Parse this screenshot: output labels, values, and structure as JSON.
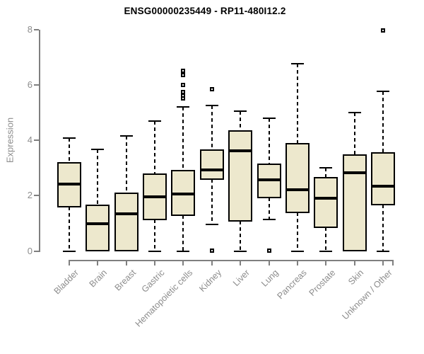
{
  "chart_data": {
    "type": "boxplot",
    "title": "ENSG00000235449 - RP11-480I12.2",
    "xlabel": "",
    "ylabel": "Expression",
    "ylim": [
      0,
      8
    ],
    "yticks": [
      0,
      2,
      4,
      6,
      8
    ],
    "grid": false,
    "legend": "none",
    "categories": [
      "Bladder",
      "Brain",
      "Breast",
      "Gastric",
      "Hematopoietic cells",
      "Kidney",
      "Liver",
      "Lung",
      "Pancreas",
      "Prostate",
      "Skin",
      "Unknown / Other"
    ],
    "series": [
      {
        "name": "Bladder",
        "low": 0,
        "q1": 1.6,
        "median": 2.42,
        "q3": 3.17,
        "high": 4.08,
        "outliers": []
      },
      {
        "name": "Brain",
        "low": 0,
        "q1": 0,
        "median": 0.98,
        "q3": 1.65,
        "high": 3.67,
        "outliers": []
      },
      {
        "name": "Breast",
        "low": 0,
        "q1": 0,
        "median": 1.34,
        "q3": 2.09,
        "high": 4.16,
        "outliers": []
      },
      {
        "name": "Gastric",
        "low": 0,
        "q1": 1.14,
        "median": 1.96,
        "q3": 2.78,
        "high": 4.7,
        "outliers": []
      },
      {
        "name": "Hematopoietic cells",
        "low": 0,
        "q1": 1.28,
        "median": 2.05,
        "q3": 2.91,
        "high": 5.21,
        "outliers": [
          5.5,
          5.6,
          5.75,
          6.0,
          6.35,
          6.5
        ]
      },
      {
        "name": "Kidney",
        "low": 0.97,
        "q1": 2.59,
        "median": 2.93,
        "q3": 3.65,
        "high": 5.26,
        "outliers": [
          5.85,
          0.02
        ]
      },
      {
        "name": "Liver",
        "low": 0,
        "q1": 1.08,
        "median": 3.61,
        "q3": 4.32,
        "high": 5.04,
        "outliers": []
      },
      {
        "name": "Lung",
        "low": 1.14,
        "q1": 1.92,
        "median": 2.56,
        "q3": 3.14,
        "high": 4.8,
        "outliers": [
          0.02
        ]
      },
      {
        "name": "Pancreas",
        "low": 0,
        "q1": 1.39,
        "median": 2.22,
        "q3": 3.87,
        "high": 6.77,
        "outliers": []
      },
      {
        "name": "Prostate",
        "low": 0,
        "q1": 0.86,
        "median": 1.91,
        "q3": 2.65,
        "high": 3.01,
        "outliers": []
      },
      {
        "name": "Skin",
        "low": 0,
        "q1": 0,
        "median": 2.82,
        "q3": 3.47,
        "high": 5.0,
        "outliers": []
      },
      {
        "name": "Unknown / Other",
        "low": 0,
        "q1": 1.68,
        "median": 2.33,
        "q3": 3.55,
        "high": 5.77,
        "outliers": [
          7.95
        ]
      }
    ],
    "colors": {
      "background": "#ffffff",
      "box_fill": "#EDE8CD",
      "box_border": "#000000",
      "median": "#000000",
      "whisker": "#000000",
      "outlier_border": "#000000",
      "axis": "#7f7f7f",
      "axis_text": "#8c8c8c",
      "title": "#000000"
    }
  }
}
